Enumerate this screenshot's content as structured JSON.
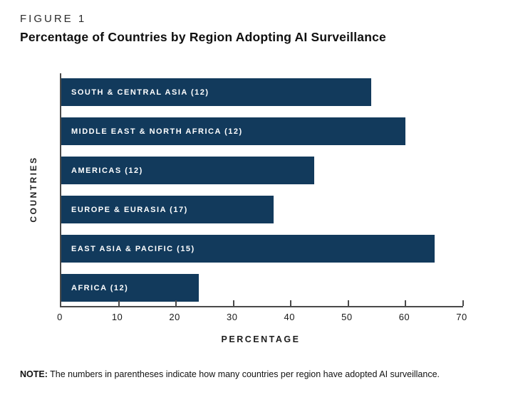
{
  "header": {
    "figure_label": "FIGURE 1",
    "title": "Percentage of Countries by Region Adopting AI Surveillance"
  },
  "chart_data": {
    "type": "bar",
    "orientation": "horizontal",
    "title": "Percentage of Countries by Region Adopting AI Surveillance",
    "categories": [
      "SOUTH & CENTRAL ASIA (12)",
      "MIDDLE EAST & NORTH AFRICA (12)",
      "AMERICAS (12)",
      "EUROPE & EURASIA (17)",
      "EAST ASIA & PACIFIC (15)",
      "AFRICA (12)"
    ],
    "values": [
      54,
      60,
      44,
      37,
      65,
      24
    ],
    "xlabel": "PERCENTAGE",
    "ylabel": "COUNTRIES",
    "xlim": [
      0,
      70
    ],
    "xticks": [
      0,
      10,
      20,
      30,
      40,
      50,
      60,
      70
    ],
    "grid": false,
    "legend_position": "none",
    "bar_color": "#123A5C",
    "bar_label_color": "#FFFFFF",
    "axis_color": "#4A4A4A"
  },
  "note": {
    "label": "NOTE:",
    "text": "The numbers in parentheses indicate how many countries per region have adopted AI surveillance."
  }
}
